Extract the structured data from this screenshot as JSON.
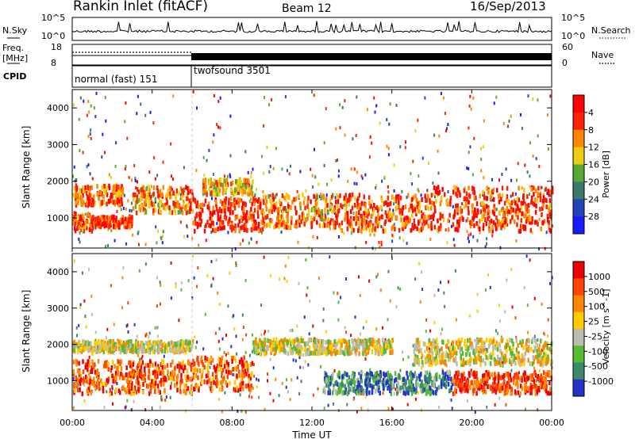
{
  "header": {
    "title": "Rankin Inlet (fitACF)",
    "beam": "Beam 12",
    "date": "16/Sep/2013"
  },
  "left_labels": {
    "nsky": "N.Sky",
    "freq": "Freq.",
    "freq_unit": "[MHz]",
    "cpid": "CPID"
  },
  "right_labels": {
    "nsearch": "N.Search",
    "nave": "Nave"
  },
  "ticks": {
    "nsky_left": [
      "10^5",
      "10^0"
    ],
    "nsky_right": [
      "10^5",
      "10^0"
    ],
    "freq": [
      "18",
      "8"
    ],
    "nave": [
      "60",
      "0"
    ]
  },
  "cpid_modes": [
    {
      "label": "normal (fast) 151",
      "start_hour": 0,
      "end_hour": 6
    },
    {
      "label": "twofsound 3501",
      "start_hour": 6,
      "end_hour": 24
    }
  ],
  "chart_data": [
    {
      "type": "heatmap",
      "title": "",
      "xlabel": "",
      "ylabel": "Slant Range [km]",
      "ylim": [
        180,
        4500
      ],
      "xlim": [
        0,
        24
      ],
      "y_ticks": [
        1000,
        2000,
        3000,
        4000
      ],
      "colorbar": {
        "label": "Power [dB]",
        "ticks": [
          4,
          8,
          12,
          16,
          20,
          24,
          28
        ],
        "range": [
          0,
          32
        ],
        "colors": [
          "#1a1aff",
          "#2244bb",
          "#3a7a6a",
          "#55aa33",
          "#eecc11",
          "#ff8800",
          "#ff2200",
          "#ff0000"
        ]
      },
      "bands": [
        {
          "start_hour": 0.0,
          "end_hour": 1.0,
          "low_km": 700,
          "high_km": 1200,
          "level": 0.8
        },
        {
          "start_hour": 0.0,
          "end_hour": 2.5,
          "low_km": 1400,
          "high_km": 1950,
          "level": 0.75
        },
        {
          "start_hour": 1.0,
          "end_hour": 3.0,
          "low_km": 800,
          "high_km": 1100,
          "level": 0.85
        },
        {
          "start_hour": 3.0,
          "end_hour": 6.0,
          "low_km": 1200,
          "high_km": 1900,
          "level": 0.7
        },
        {
          "start_hour": 6.0,
          "end_hour": 9.5,
          "low_km": 700,
          "high_km": 1600,
          "level": 0.85
        },
        {
          "start_hour": 6.5,
          "end_hour": 9.0,
          "low_km": 1700,
          "high_km": 2100,
          "level": 0.6
        },
        {
          "start_hour": 9.5,
          "end_hour": 13.0,
          "low_km": 800,
          "high_km": 1700,
          "level": 0.7
        },
        {
          "start_hour": 13.0,
          "end_hour": 18.0,
          "low_km": 700,
          "high_km": 1700,
          "level": 0.78
        },
        {
          "start_hour": 18.0,
          "end_hour": 24.0,
          "low_km": 700,
          "high_km": 1900,
          "level": 0.8
        }
      ]
    },
    {
      "type": "heatmap",
      "title": "",
      "xlabel": "Time UT",
      "ylabel": "Slant Range [km]",
      "ylim": [
        180,
        4500
      ],
      "xlim": [
        0,
        24
      ],
      "y_ticks": [
        1000,
        2000,
        3000,
        4000
      ],
      "x_ticks": [
        "00:00",
        "04:00",
        "08:00",
        "12:00",
        "16:00",
        "20:00",
        "00:00"
      ],
      "colorbar": {
        "label": "Velocity [m s^-1]",
        "ticks": [
          "1000",
          "500",
          "100",
          "25",
          "-25",
          "-100",
          "-500",
          "-1000"
        ],
        "range": [
          -1000,
          1000
        ],
        "colors": [
          "#2233cc",
          "#3a8a6a",
          "#55bb33",
          "#bbbbb0",
          "#ffcc00",
          "#ff8800",
          "#ff4400",
          "#ee0000"
        ]
      },
      "bands": [
        {
          "start_hour": 0.0,
          "end_hour": 6.0,
          "low_km": 1850,
          "high_km": 2150,
          "level": 0.5
        },
        {
          "start_hour": 0.0,
          "end_hour": 6.0,
          "low_km": 700,
          "high_km": 1600,
          "level": 0.8
        },
        {
          "start_hour": 6.0,
          "end_hour": 9.0,
          "low_km": 800,
          "high_km": 1700,
          "level": 0.75
        },
        {
          "start_hour": 9.0,
          "end_hour": 16.0,
          "low_km": 1800,
          "high_km": 2200,
          "level": 0.5
        },
        {
          "start_hour": 12.5,
          "end_hour": 19.0,
          "low_km": 700,
          "high_km": 1300,
          "level": 0.2
        },
        {
          "start_hour": 17.0,
          "end_hour": 24.0,
          "low_km": 1500,
          "high_km": 2200,
          "level": 0.5
        },
        {
          "start_hour": 19.0,
          "end_hour": 24.0,
          "low_km": 700,
          "high_km": 1300,
          "level": 0.85
        }
      ]
    }
  ]
}
